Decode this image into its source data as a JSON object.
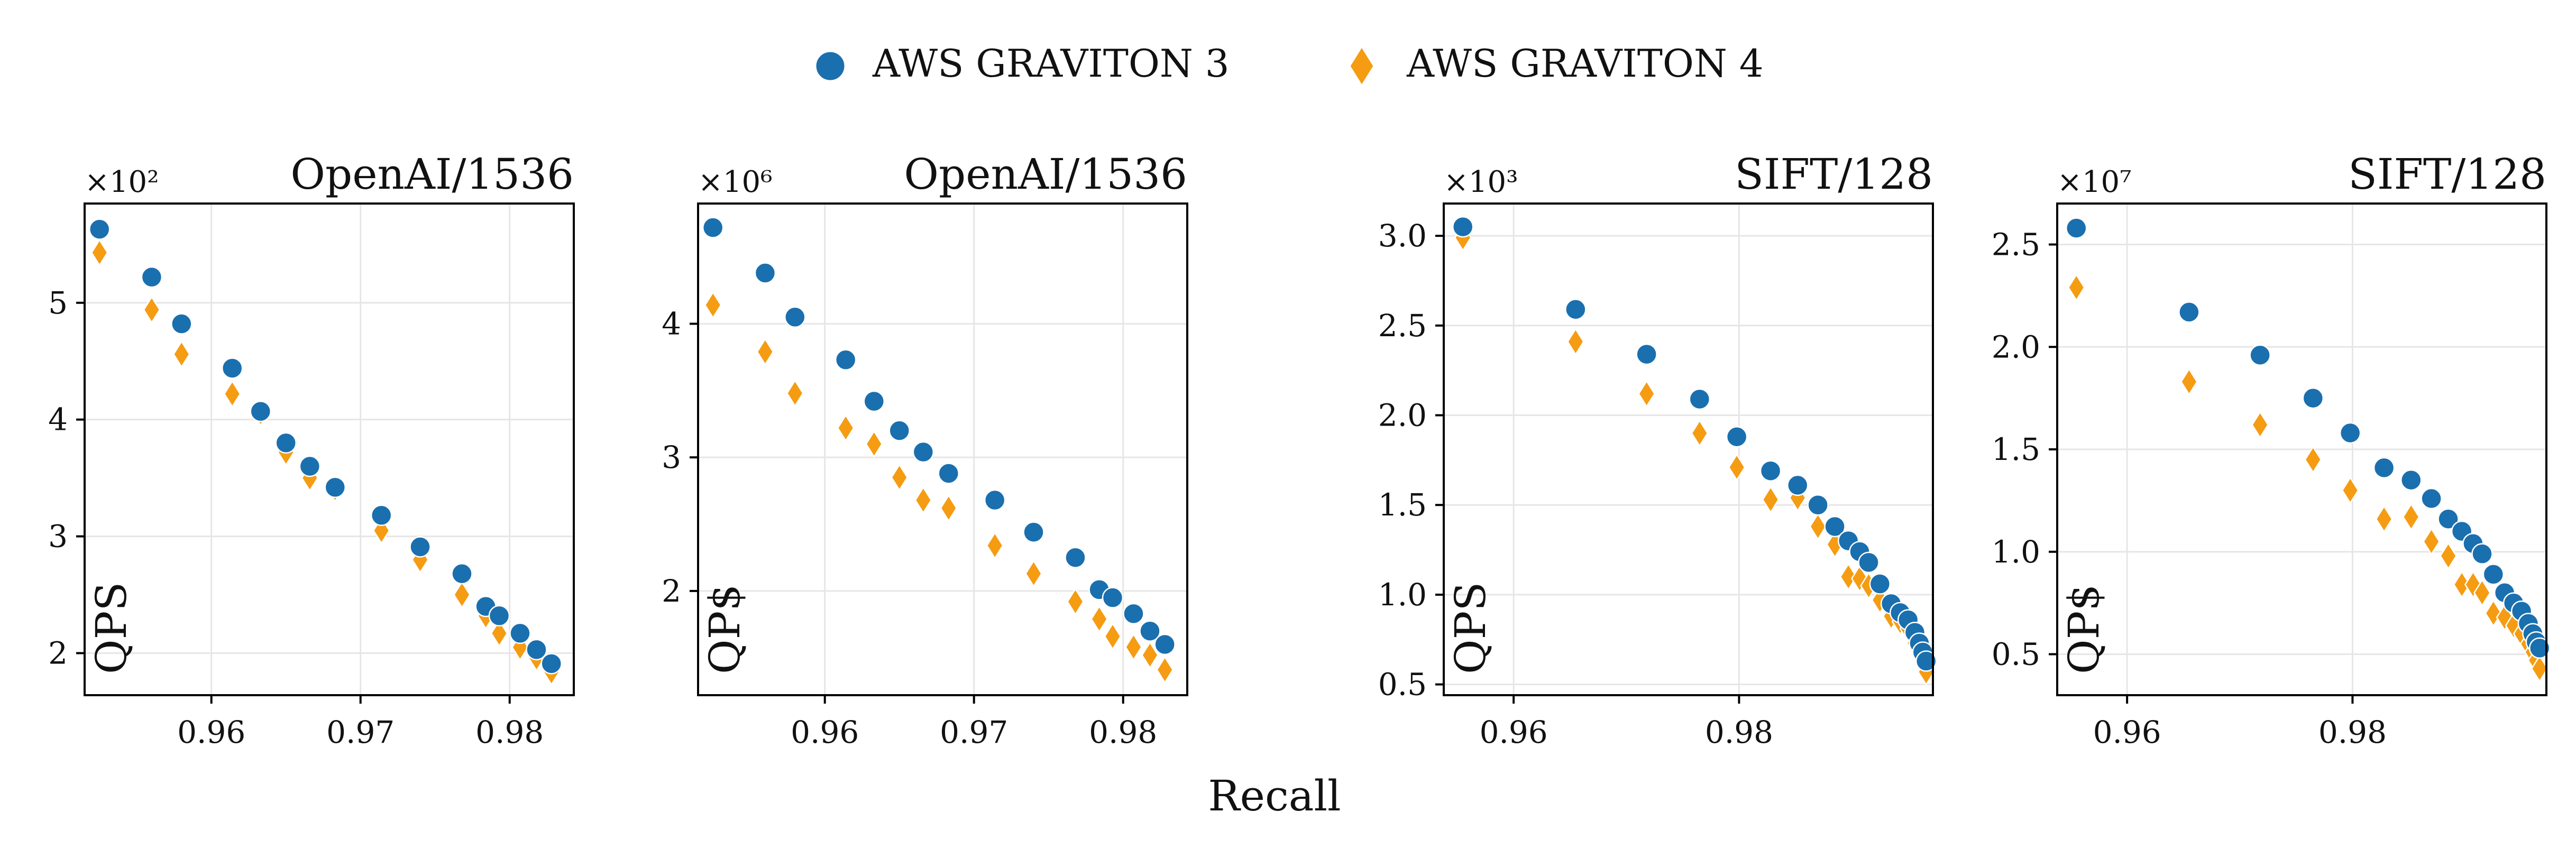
{
  "figure": {
    "xlabel": "Recall",
    "legend": [
      {
        "name": "AWS GRAVITON 3",
        "marker": "circle",
        "color": "#1a6faf"
      },
      {
        "name": "AWS GRAVITON 4",
        "marker": "diamond",
        "color": "#f59c12"
      }
    ]
  },
  "chart_data": [
    {
      "type": "scatter",
      "title": "OpenAI/1536",
      "ylabel": "QPS",
      "multiplier": "×10²",
      "xlim": [
        0.9515,
        0.9843
      ],
      "ylim": [
        1.64,
        5.85
      ],
      "xticks": [
        0.96,
        0.97,
        0.98
      ],
      "xticklabels": [
        "0.96",
        "0.97",
        "0.98"
      ],
      "yticks": [
        2,
        3,
        4,
        5
      ],
      "yticklabels": [
        "2",
        "3",
        "4",
        "5"
      ],
      "series": [
        {
          "name": "AWS GRAVITON 3",
          "x": [
            0.9525,
            0.956,
            0.958,
            0.9614,
            0.9633,
            0.965,
            0.9666,
            0.9683,
            0.9714,
            0.974,
            0.9768,
            0.9784,
            0.9793,
            0.9807,
            0.9818,
            0.9828
          ],
          "y": [
            5.63,
            5.22,
            4.82,
            4.44,
            4.07,
            3.8,
            3.6,
            3.42,
            3.18,
            2.91,
            2.68,
            2.4,
            2.32,
            2.17,
            2.03,
            1.91
          ]
        },
        {
          "name": "AWS GRAVITON 4",
          "x": [
            0.9525,
            0.956,
            0.958,
            0.9614,
            0.9633,
            0.965,
            0.9666,
            0.9683,
            0.9714,
            0.974,
            0.9768,
            0.9784,
            0.9793,
            0.9807,
            0.9818,
            0.9828
          ],
          "y": [
            5.43,
            4.94,
            4.56,
            4.22,
            4.06,
            3.72,
            3.5,
            3.41,
            3.05,
            2.8,
            2.5,
            2.32,
            2.17,
            2.05,
            1.96,
            1.84
          ]
        }
      ]
    },
    {
      "type": "scatter",
      "title": "OpenAI/1536",
      "ylabel": "QP$",
      "multiplier": "×10⁶",
      "xlim": [
        0.9515,
        0.9843
      ],
      "ylim": [
        1.22,
        4.9
      ],
      "xticks": [
        0.96,
        0.97,
        0.98
      ],
      "xticklabels": [
        "0.96",
        "0.97",
        "0.98"
      ],
      "yticks": [
        2,
        3,
        4
      ],
      "yticklabels": [
        "2",
        "3",
        "4"
      ],
      "series": [
        {
          "name": "AWS GRAVITON 3",
          "x": [
            0.9525,
            0.956,
            0.958,
            0.9614,
            0.9633,
            0.965,
            0.9666,
            0.9683,
            0.9714,
            0.974,
            0.9768,
            0.9784,
            0.9793,
            0.9807,
            0.9818,
            0.9828
          ],
          "y": [
            4.72,
            4.38,
            4.05,
            3.73,
            3.42,
            3.2,
            3.04,
            2.88,
            2.68,
            2.44,
            2.25,
            2.01,
            1.95,
            1.83,
            1.7,
            1.6
          ]
        },
        {
          "name": "AWS GRAVITON 4",
          "x": [
            0.9525,
            0.956,
            0.958,
            0.9614,
            0.9633,
            0.965,
            0.9666,
            0.9683,
            0.9714,
            0.974,
            0.9768,
            0.9784,
            0.9793,
            0.9807,
            0.9818,
            0.9828
          ],
          "y": [
            4.14,
            3.79,
            3.48,
            3.22,
            3.1,
            2.85,
            2.68,
            2.62,
            2.34,
            2.13,
            1.92,
            1.79,
            1.66,
            1.58,
            1.52,
            1.41
          ]
        }
      ]
    },
    {
      "type": "scatter",
      "title": "SIFT/128",
      "ylabel": "QPS",
      "multiplier": "×10³",
      "xlim": [
        0.9538,
        0.9972
      ],
      "ylim": [
        0.44,
        3.18
      ],
      "xticks": [
        0.96,
        0.98
      ],
      "xticklabels": [
        "0.96",
        "0.98"
      ],
      "yticks": [
        0.5,
        1.0,
        1.5,
        2.0,
        2.5,
        3.0
      ],
      "yticklabels": [
        "0.5",
        "1.0",
        "1.5",
        "2.0",
        "2.5",
        "3.0"
      ],
      "series": [
        {
          "name": "AWS GRAVITON 3",
          "x": [
            0.9555,
            0.9655,
            0.9718,
            0.9765,
            0.9798,
            0.9828,
            0.9852,
            0.987,
            0.9885,
            0.9897,
            0.9907,
            0.9915,
            0.9925,
            0.9935,
            0.9943,
            0.995,
            0.9956,
            0.996,
            0.9963,
            0.9966
          ],
          "y": [
            3.05,
            2.59,
            2.34,
            2.09,
            1.88,
            1.69,
            1.61,
            1.5,
            1.38,
            1.3,
            1.24,
            1.18,
            1.06,
            0.95,
            0.9,
            0.86,
            0.79,
            0.73,
            0.68,
            0.63
          ]
        },
        {
          "name": "AWS GRAVITON 4",
          "x": [
            0.9555,
            0.9655,
            0.9718,
            0.9765,
            0.9798,
            0.9828,
            0.9852,
            0.987,
            0.9885,
            0.9897,
            0.9907,
            0.9915,
            0.9925,
            0.9935,
            0.9943,
            0.995,
            0.9956,
            0.996,
            0.9963,
            0.9966
          ],
          "y": [
            2.99,
            2.41,
            2.12,
            1.9,
            1.71,
            1.53,
            1.54,
            1.38,
            1.28,
            1.1,
            1.09,
            1.05,
            0.97,
            0.88,
            0.85,
            0.81,
            0.73,
            0.68,
            0.62,
            0.57
          ]
        }
      ]
    },
    {
      "type": "scatter",
      "title": "SIFT/128",
      "ylabel": "QP$",
      "multiplier": "×10⁷",
      "xlim": [
        0.9538,
        0.9972
      ],
      "ylim": [
        0.3,
        2.7
      ],
      "xticks": [
        0.96,
        0.98
      ],
      "xticklabels": [
        "0.96",
        "0.98"
      ],
      "yticks": [
        0.5,
        1.0,
        1.5,
        2.0,
        2.5
      ],
      "yticklabels": [
        "0.5",
        "1.0",
        "1.5",
        "2.0",
        "2.5"
      ],
      "series": [
        {
          "name": "AWS GRAVITON 3",
          "x": [
            0.9555,
            0.9655,
            0.9718,
            0.9765,
            0.9798,
            0.9828,
            0.9852,
            0.987,
            0.9885,
            0.9897,
            0.9907,
            0.9915,
            0.9925,
            0.9935,
            0.9943,
            0.995,
            0.9956,
            0.996,
            0.9963,
            0.9966
          ],
          "y": [
            2.58,
            2.17,
            1.96,
            1.75,
            1.58,
            1.41,
            1.35,
            1.26,
            1.16,
            1.1,
            1.04,
            0.99,
            0.89,
            0.8,
            0.75,
            0.71,
            0.65,
            0.6,
            0.56,
            0.53
          ]
        },
        {
          "name": "AWS GRAVITON 4",
          "x": [
            0.9555,
            0.9655,
            0.9718,
            0.9765,
            0.9798,
            0.9828,
            0.9852,
            0.987,
            0.9885,
            0.9897,
            0.9907,
            0.9915,
            0.9925,
            0.9935,
            0.9943,
            0.995,
            0.9956,
            0.996,
            0.9963,
            0.9966
          ],
          "y": [
            2.29,
            1.83,
            1.62,
            1.45,
            1.3,
            1.16,
            1.17,
            1.05,
            0.98,
            0.84,
            0.84,
            0.8,
            0.7,
            0.68,
            0.64,
            0.6,
            0.55,
            0.51,
            0.47,
            0.43
          ]
        }
      ]
    }
  ]
}
